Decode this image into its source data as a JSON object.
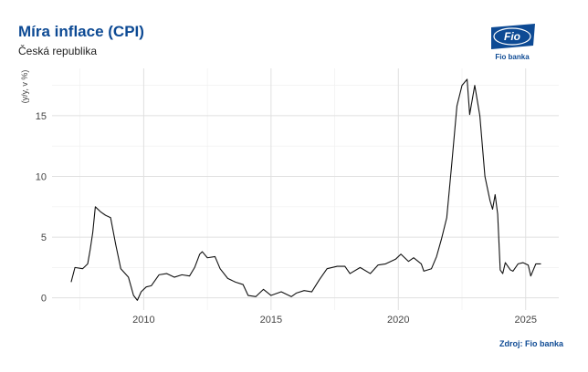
{
  "logo": {
    "mark": "Fio",
    "text": "Fio banka"
  },
  "source": "Zdroj: Fio banka",
  "chart_data": {
    "type": "line",
    "title": "Míra inflace (CPI)",
    "subtitle": "Česká republika",
    "y_label": "(y/y, v %)",
    "xlim": [
      2006.4,
      2026.3
    ],
    "xticks": [
      2010,
      2015,
      2020,
      2025
    ],
    "ylim": [
      -1,
      18.9
    ],
    "yticks": [
      0,
      5,
      10,
      15
    ],
    "grid": true,
    "x": [
      2007.15,
      2007.3,
      2007.6,
      2007.8,
      2007.9,
      2008.0,
      2008.1,
      2008.3,
      2008.5,
      2008.7,
      2008.9,
      2009.1,
      2009.4,
      2009.6,
      2009.75,
      2009.9,
      2010.1,
      2010.3,
      2010.6,
      2010.9,
      2011.2,
      2011.5,
      2011.8,
      2012.0,
      2012.2,
      2012.3,
      2012.5,
      2012.8,
      2013.0,
      2013.3,
      2013.6,
      2013.9,
      2014.1,
      2014.4,
      2014.7,
      2015.0,
      2015.4,
      2015.8,
      2016.0,
      2016.3,
      2016.6,
      2016.9,
      2017.2,
      2017.6,
      2017.9,
      2018.1,
      2018.5,
      2018.9,
      2019.2,
      2019.5,
      2019.9,
      2020.1,
      2020.4,
      2020.6,
      2020.9,
      2021.0,
      2021.3,
      2021.5,
      2021.7,
      2021.9,
      2022.1,
      2022.3,
      2022.5,
      2022.7,
      2022.8,
      2023.0,
      2023.2,
      2023.4,
      2023.6,
      2023.7,
      2023.8,
      2023.9,
      2024.0,
      2024.1,
      2024.2,
      2024.4,
      2024.5,
      2024.7,
      2024.9,
      2025.1,
      2025.2,
      2025.4,
      2025.6
    ],
    "series": [
      {
        "name": "CPI",
        "color": "#111111",
        "values": [
          1.3,
          2.5,
          2.4,
          2.8,
          4.0,
          5.4,
          7.5,
          7.1,
          6.8,
          6.6,
          4.4,
          2.4,
          1.7,
          0.2,
          -0.2,
          0.5,
          0.9,
          1.0,
          1.9,
          2.0,
          1.7,
          1.9,
          1.8,
          2.5,
          3.6,
          3.8,
          3.3,
          3.4,
          2.4,
          1.6,
          1.3,
          1.1,
          0.2,
          0.1,
          0.7,
          0.2,
          0.5,
          0.1,
          0.4,
          0.6,
          0.5,
          1.5,
          2.4,
          2.6,
          2.6,
          2.0,
          2.5,
          2.0,
          2.7,
          2.8,
          3.2,
          3.6,
          3.0,
          3.3,
          2.8,
          2.2,
          2.4,
          3.4,
          4.9,
          6.6,
          11.1,
          15.8,
          17.5,
          18.0,
          15.1,
          17.5,
          15.0,
          10.0,
          8.0,
          7.3,
          8.5,
          6.9,
          2.3,
          2.0,
          2.9,
          2.3,
          2.2,
          2.8,
          2.9,
          2.7,
          1.8,
          2.8,
          2.8
        ]
      }
    ]
  }
}
